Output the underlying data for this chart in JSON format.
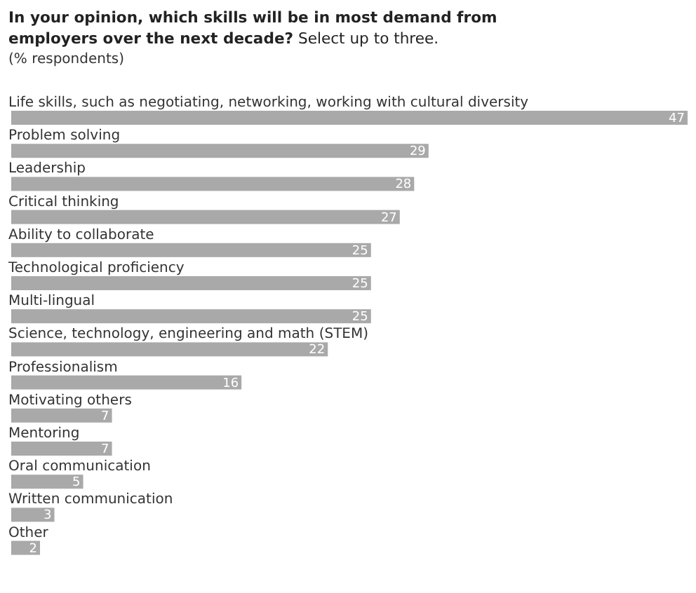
{
  "chart_data": {
    "type": "bar",
    "orientation": "horizontal",
    "title": "In your opinion, which skills will be in most demand from employers over the next decade?",
    "subtitle": "Select up to three.",
    "annotations": [
      "(% respondents)"
    ],
    "categories": [
      "Life skills, such as negotiating, networking, working with cultural diversity",
      "Problem solving",
      "Leadership",
      "Critical thinking",
      "Ability to collaborate",
      "Technological proficiency",
      "Multi-lingual",
      "Science, technology, engineering and math (STEM)",
      "Professionalism",
      "Motivating others",
      "Mentoring",
      "Oral communication",
      "Written communication",
      "Other"
    ],
    "values": [
      47,
      29,
      28,
      27,
      25,
      25,
      25,
      22,
      16,
      7,
      7,
      5,
      3,
      2
    ],
    "color": "#a9a9a9",
    "data_labels": true
  }
}
